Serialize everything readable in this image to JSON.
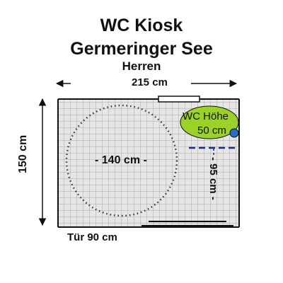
{
  "title": {
    "line1": "WC Kiosk",
    "line2": "Germeringer See",
    "line3": "Herren"
  },
  "dimensions": {
    "width": "215 cm",
    "height": "150 cm",
    "turning_circle": "- 140 cm -",
    "clearance": "- 95 cm -",
    "door": "Tür 90 cm"
  },
  "toilet": {
    "label_line1": "WC Höhe",
    "label_line2": "50 cm"
  },
  "colors": {
    "floor_tile": "#e6e6e6",
    "grid_line": "#a8a8a8",
    "wall": "#111111",
    "toilet": "#9ad22a",
    "toilet_marker": "#2470c8",
    "clearance_line": "#1f2a80"
  }
}
